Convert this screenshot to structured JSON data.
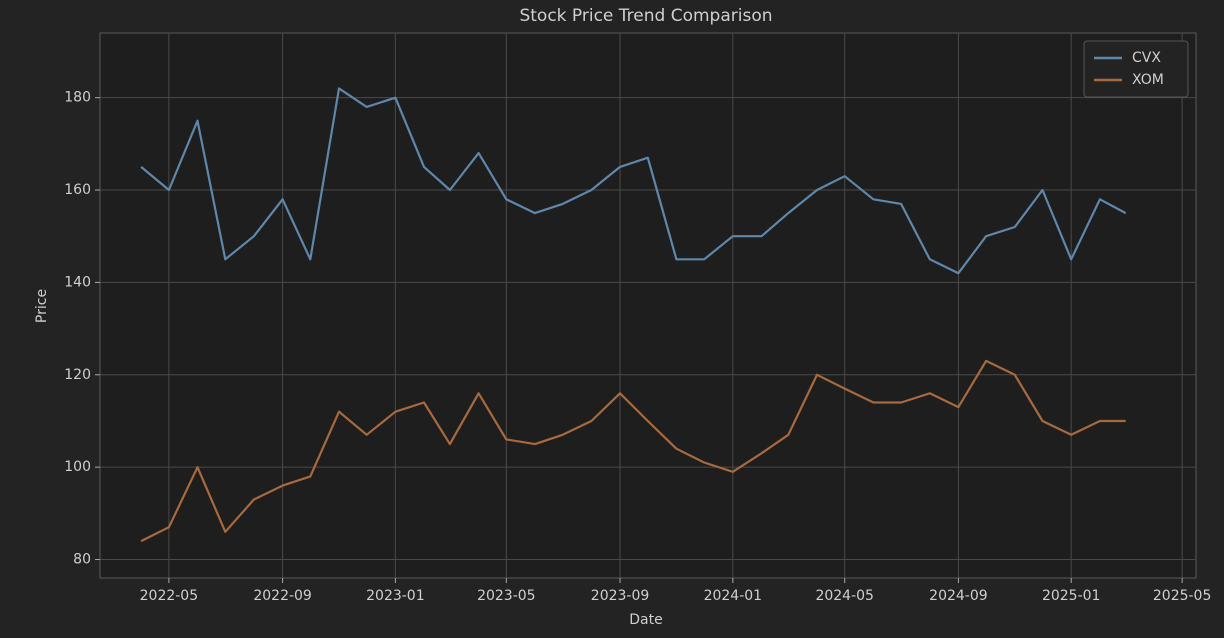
{
  "chart_data": {
    "type": "line",
    "title": "Stock Price Trend Comparison",
    "xlabel": "Date",
    "ylabel": "Price",
    "x": [
      "2022-04",
      "2022-05",
      "2022-06",
      "2022-07",
      "2022-08",
      "2022-09",
      "2022-10",
      "2022-11",
      "2022-12",
      "2023-01",
      "2023-02",
      "2023-03",
      "2023-04",
      "2023-05",
      "2023-06",
      "2023-07",
      "2023-08",
      "2023-09",
      "2023-10",
      "2023-11",
      "2023-12",
      "2024-01",
      "2024-02",
      "2024-03",
      "2024-04",
      "2024-05",
      "2024-06",
      "2024-07",
      "2024-08",
      "2024-09",
      "2024-10",
      "2024-11",
      "2024-12",
      "2025-01",
      "2025-02",
      "2025-03"
    ],
    "series": [
      {
        "name": "CVX",
        "color": "#5f87aa",
        "values": [
          165,
          160,
          175,
          145,
          150,
          158,
          145,
          182,
          178,
          180,
          165,
          160,
          168,
          158,
          155,
          157,
          160,
          165,
          167,
          145,
          145,
          150,
          150,
          155,
          160,
          163,
          158,
          157,
          145,
          142,
          150,
          152,
          160,
          145,
          158,
          155
        ]
      },
      {
        "name": "XOM",
        "color": "#a8693f",
        "values": [
          84,
          87,
          100,
          86,
          93,
          96,
          98,
          112,
          107,
          112,
          114,
          105,
          116,
          106,
          105,
          107,
          110,
          116,
          110,
          104,
          101,
          99,
          103,
          107,
          120,
          117,
          114,
          114,
          116,
          113,
          123,
          120,
          110,
          107,
          110,
          110
        ]
      }
    ],
    "xlim": [
      "2022-02",
      "2025-06"
    ],
    "xticks": [
      "2022-05",
      "2022-09",
      "2023-01",
      "2023-05",
      "2023-09",
      "2024-01",
      "2024-05",
      "2024-09",
      "2025-01",
      "2025-05"
    ],
    "ylim": [
      76,
      194
    ],
    "yticks": [
      80,
      100,
      120,
      140,
      160,
      180
    ],
    "grid": true,
    "legend": "upper right"
  }
}
